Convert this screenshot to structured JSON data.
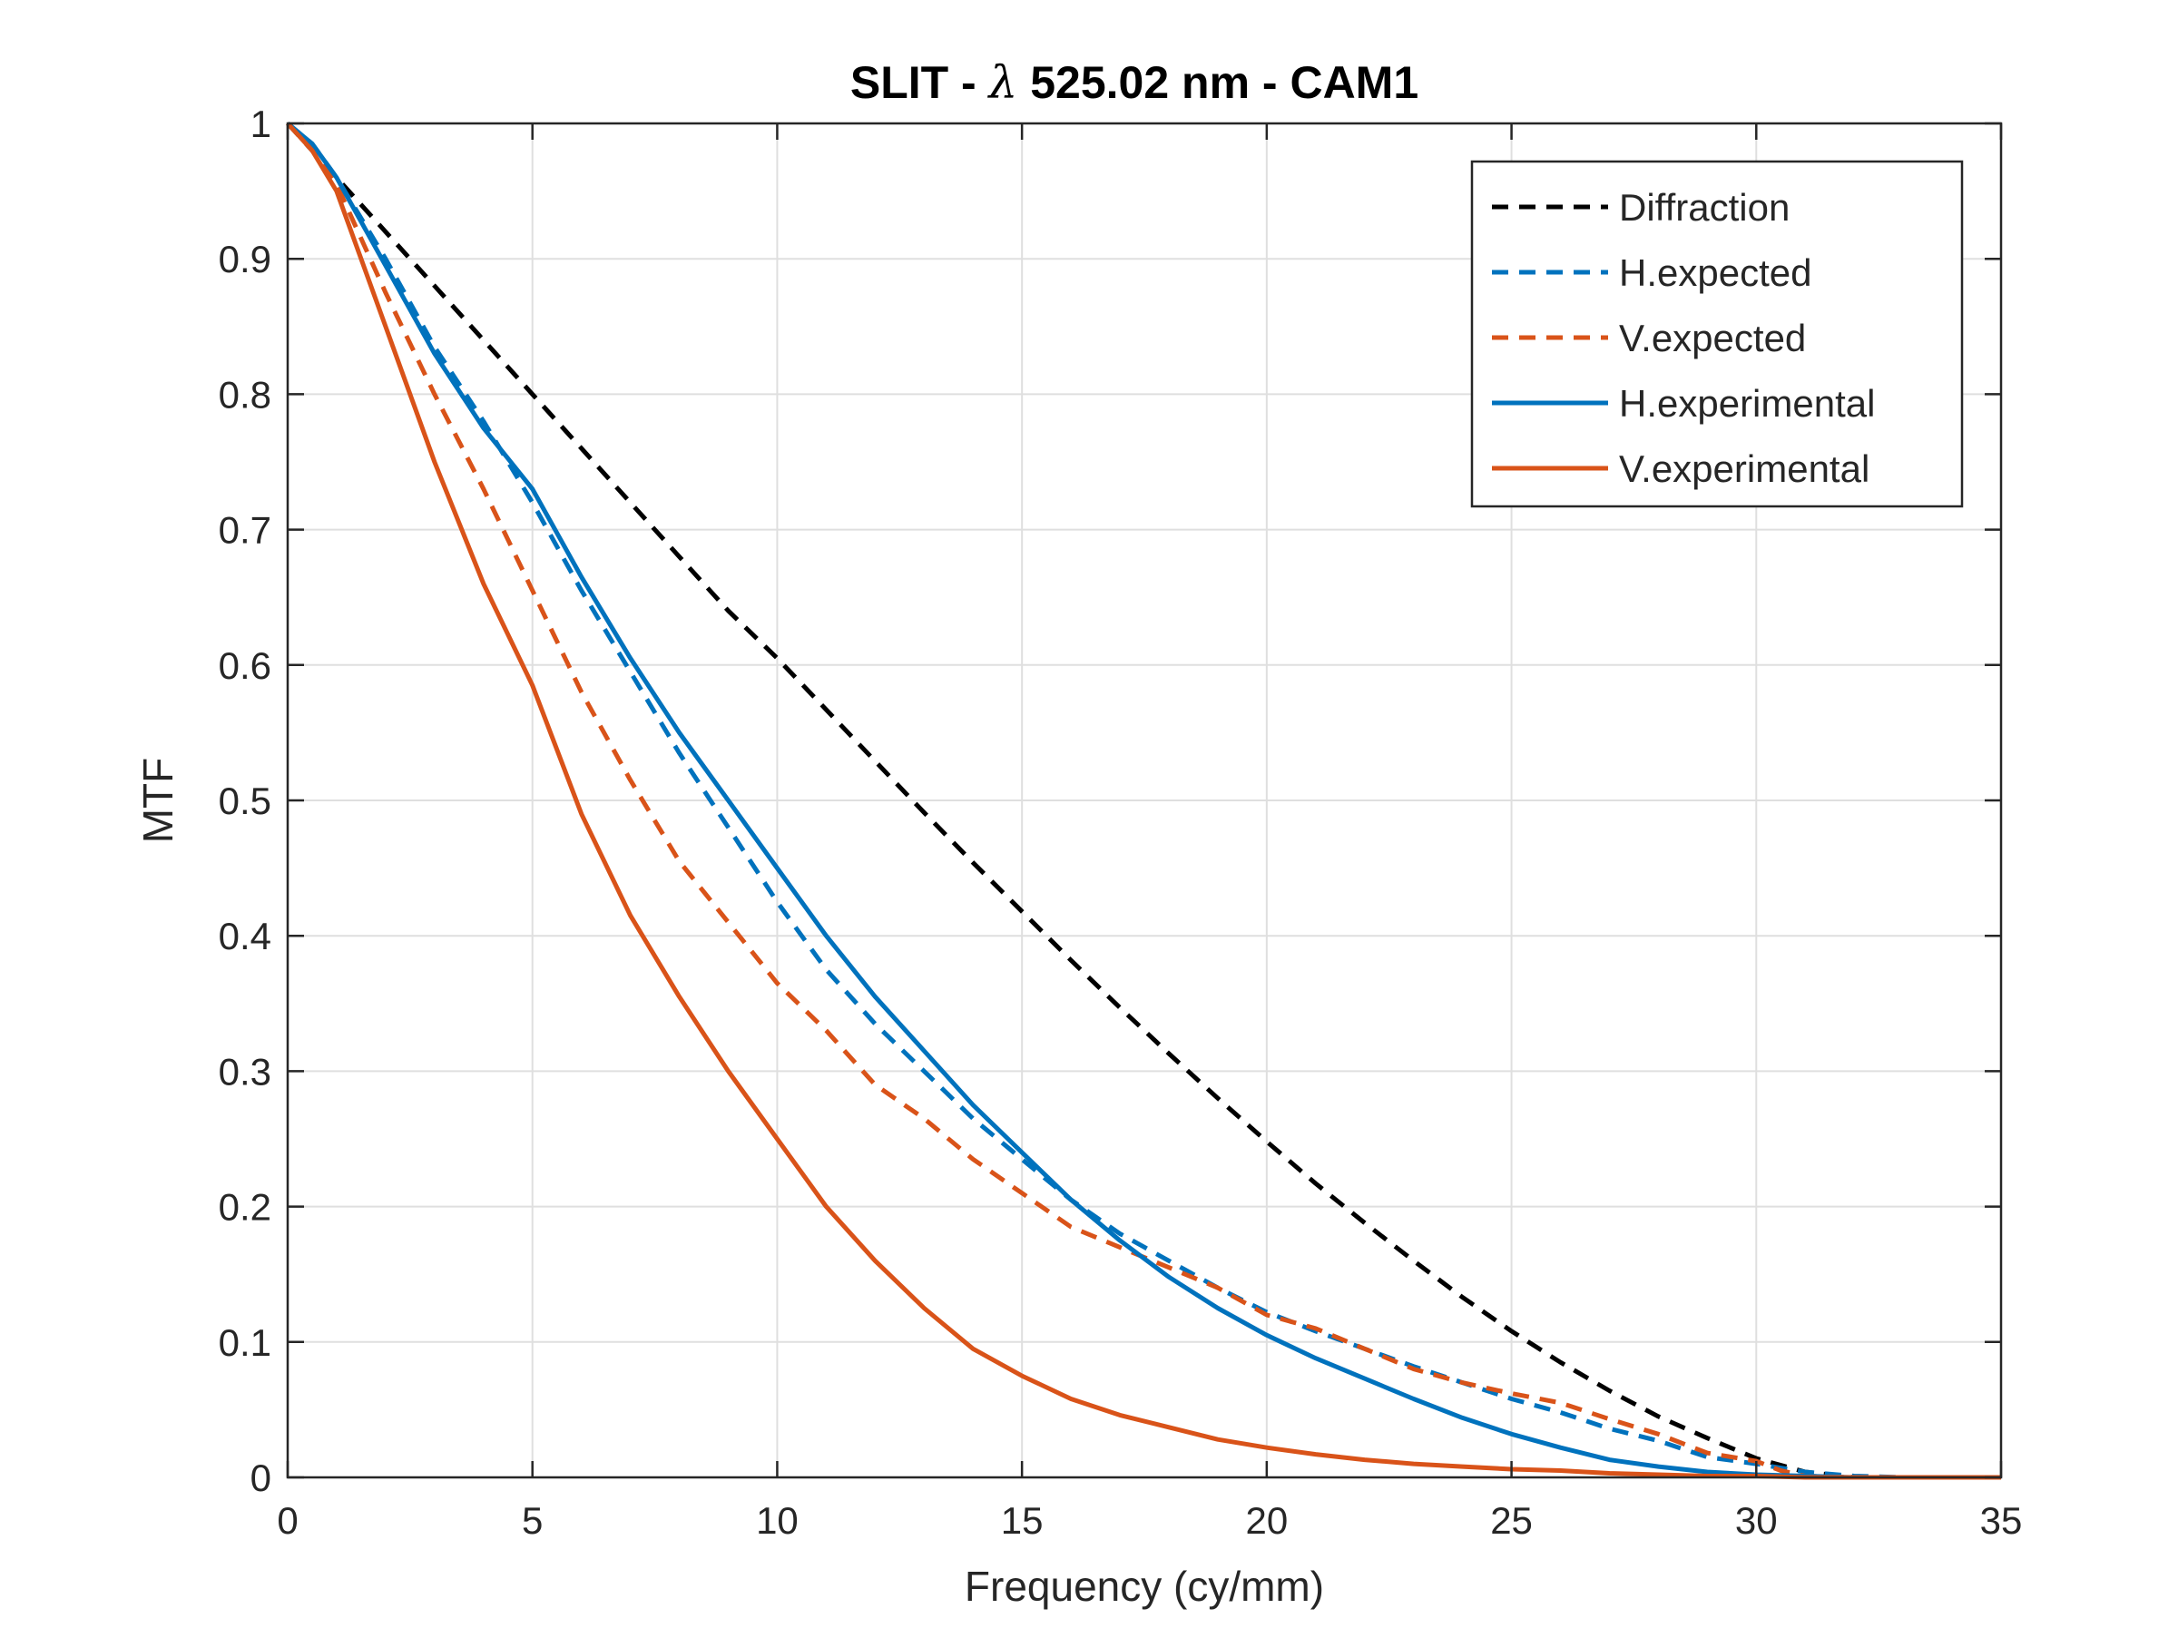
{
  "chart_data": {
    "type": "line",
    "title_prefix": "SLIT - ",
    "title_symbol": "λ",
    "title_suffix": " 525.02 nm - CAM1",
    "xlabel": "Frequency (cy/mm)",
    "ylabel": "MTF",
    "xlim": [
      0,
      35
    ],
    "ylim": [
      0,
      1
    ],
    "x_ticks": [
      0,
      5,
      10,
      15,
      20,
      25,
      30,
      35
    ],
    "y_ticks": [
      0,
      0.1,
      0.2,
      0.3,
      0.4,
      0.5,
      0.6,
      0.7,
      0.8,
      0.9,
      1
    ],
    "grid": true,
    "legend_position": "top-right",
    "series": [
      {
        "name": "Diffraction",
        "color": "#000000",
        "dash": "dashed",
        "x": [
          0,
          1,
          2,
          3,
          4,
          5,
          6,
          7,
          8,
          9,
          10,
          11,
          12,
          13,
          14,
          15,
          16,
          17,
          18,
          19,
          20,
          21,
          22,
          23,
          24,
          25,
          26,
          27,
          28,
          29,
          30,
          31,
          32,
          33,
          34,
          35
        ],
        "y": [
          1.0,
          0.96,
          0.92,
          0.88,
          0.84,
          0.8,
          0.76,
          0.72,
          0.68,
          0.64,
          0.605,
          0.567,
          0.529,
          0.491,
          0.454,
          0.418,
          0.382,
          0.347,
          0.313,
          0.28,
          0.248,
          0.217,
          0.188,
          0.16,
          0.133,
          0.108,
          0.085,
          0.064,
          0.045,
          0.029,
          0.014,
          0.004,
          0.0,
          0.0,
          0.0,
          0.0
        ]
      },
      {
        "name": "H.expected",
        "color": "#0072BD",
        "dash": "dashed",
        "x": [
          0,
          0.5,
          1,
          2,
          3,
          4,
          5,
          6,
          7,
          8,
          9,
          10,
          11,
          12,
          13,
          14,
          15,
          16,
          17,
          18,
          19,
          20,
          21,
          22,
          23,
          24,
          25,
          26,
          27,
          28,
          29,
          30,
          31,
          32,
          33,
          34,
          35
        ],
        "y": [
          1.0,
          0.985,
          0.96,
          0.9,
          0.835,
          0.78,
          0.72,
          0.655,
          0.595,
          0.535,
          0.48,
          0.425,
          0.375,
          0.335,
          0.3,
          0.265,
          0.235,
          0.205,
          0.18,
          0.16,
          0.14,
          0.122,
          0.108,
          0.095,
          0.082,
          0.07,
          0.058,
          0.048,
          0.036,
          0.027,
          0.015,
          0.01,
          0.004,
          0.001,
          0.0,
          0.0,
          0.0
        ]
      },
      {
        "name": "V.expected",
        "color": "#D95319",
        "dash": "dashed",
        "x": [
          0,
          0.5,
          1,
          2,
          3,
          4,
          5,
          6,
          7,
          8,
          9,
          10,
          11,
          12,
          13,
          14,
          15,
          16,
          17,
          18,
          19,
          20,
          21,
          22,
          23,
          24,
          25,
          26,
          27,
          28,
          29,
          30,
          30.5,
          31,
          32,
          33,
          34,
          35
        ],
        "y": [
          1.0,
          0.98,
          0.955,
          0.875,
          0.8,
          0.73,
          0.655,
          0.58,
          0.515,
          0.455,
          0.41,
          0.365,
          0.33,
          0.29,
          0.265,
          0.235,
          0.21,
          0.185,
          0.17,
          0.155,
          0.14,
          0.12,
          0.11,
          0.095,
          0.08,
          0.07,
          0.062,
          0.055,
          0.043,
          0.032,
          0.018,
          0.012,
          0.005,
          0.001,
          0.0,
          0.0,
          0.0,
          0.0
        ]
      },
      {
        "name": "H.experimental",
        "color": "#0072BD",
        "dash": "solid",
        "x": [
          0,
          0.5,
          1,
          2,
          3,
          4,
          5,
          6,
          7,
          8,
          9,
          10,
          11,
          12,
          13,
          14,
          15,
          16,
          17,
          18,
          19,
          20,
          21,
          22,
          23,
          24,
          25,
          26,
          27,
          28,
          29,
          30,
          31,
          32,
          33,
          34,
          35
        ],
        "y": [
          1.0,
          0.985,
          0.96,
          0.895,
          0.83,
          0.775,
          0.73,
          0.665,
          0.605,
          0.55,
          0.5,
          0.45,
          0.4,
          0.355,
          0.315,
          0.275,
          0.24,
          0.205,
          0.175,
          0.148,
          0.125,
          0.105,
          0.088,
          0.073,
          0.058,
          0.044,
          0.032,
          0.022,
          0.013,
          0.008,
          0.004,
          0.002,
          0.001,
          0.0,
          0.0,
          0.0,
          0.0
        ]
      },
      {
        "name": "V.experimental",
        "color": "#D95319",
        "dash": "solid",
        "x": [
          0,
          0.5,
          1,
          2,
          3,
          4,
          5,
          6,
          7,
          8,
          9,
          10,
          11,
          12,
          13,
          14,
          15,
          16,
          17,
          18,
          19,
          20,
          21,
          22,
          23,
          24,
          25,
          26,
          27,
          28,
          29,
          30,
          31,
          32,
          33,
          34,
          35
        ],
        "y": [
          1.0,
          0.98,
          0.95,
          0.85,
          0.75,
          0.66,
          0.585,
          0.49,
          0.415,
          0.355,
          0.3,
          0.25,
          0.2,
          0.16,
          0.125,
          0.095,
          0.075,
          0.058,
          0.046,
          0.037,
          0.028,
          0.022,
          0.017,
          0.013,
          0.01,
          0.008,
          0.006,
          0.005,
          0.003,
          0.002,
          0.001,
          0.001,
          0.0,
          0.0,
          0.0,
          0.0,
          0.0
        ]
      }
    ]
  }
}
